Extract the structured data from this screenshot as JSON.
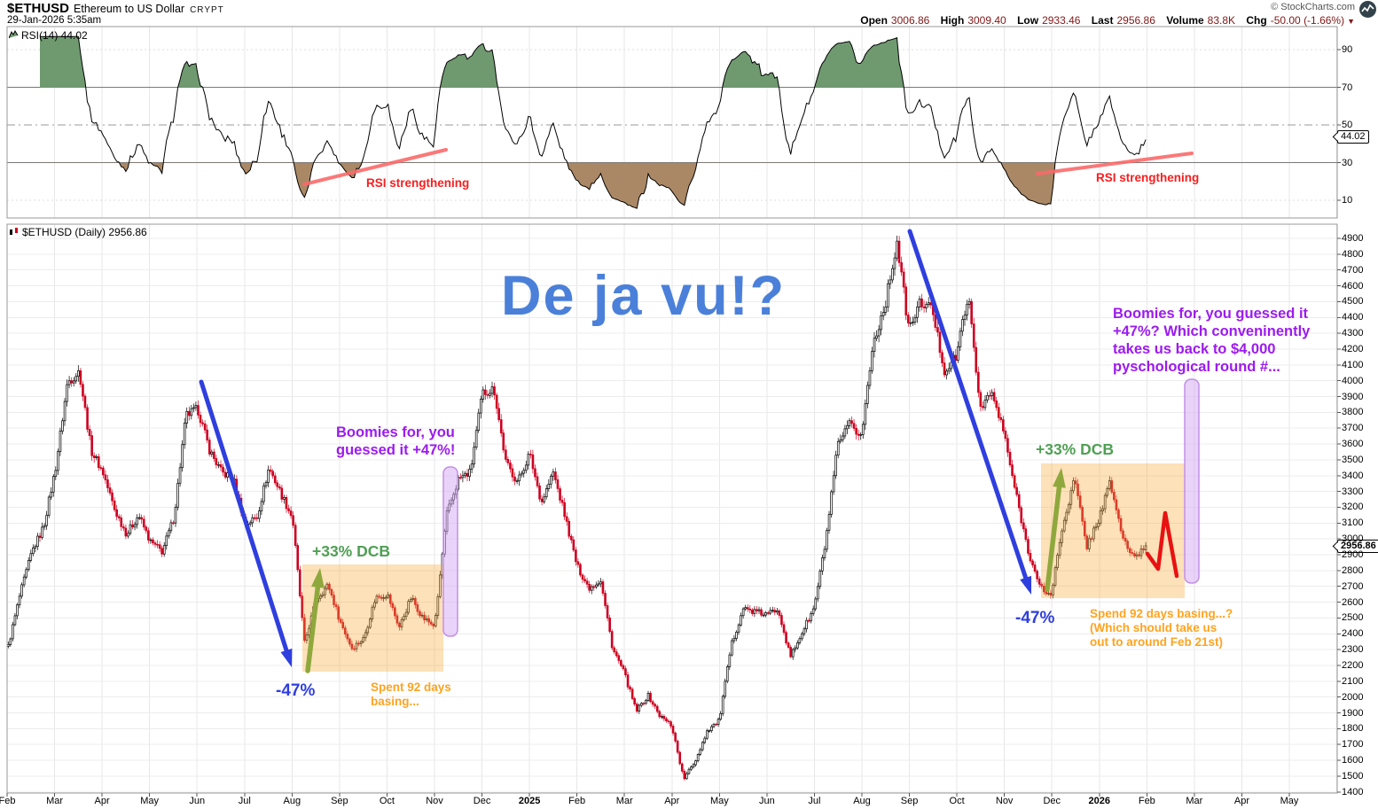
{
  "header": {
    "symbol": "$ETHUSD",
    "name": "Ethereum to US Dollar",
    "exchange": "CRYPT",
    "datetime": "29-Jan-2026 5:35am",
    "credit": "© StockCharts.com",
    "quote": {
      "items": [
        {
          "label": "Open",
          "value": "3006.86"
        },
        {
          "label": "High",
          "value": "3009.40"
        },
        {
          "label": "Low",
          "value": "2933.46"
        },
        {
          "label": "Last",
          "value": "2956.86"
        },
        {
          "label": "Volume",
          "value": "83.8K"
        },
        {
          "label": "Chg",
          "value": "-50.00 (-1.66%)"
        }
      ],
      "chg_direction_icon": "▼"
    }
  },
  "rsi_panel": {
    "label": "RSI(14) 44.02"
  },
  "price_panel": {
    "label": "$ETHUSD (Daily) 2956.86"
  },
  "tags": {
    "rsi": "44.02",
    "price": "2956.86"
  },
  "annotations": {
    "dejavu": "De ja vu!?",
    "purple_left_l1": "Boomies for, you",
    "purple_left_l2": "guessed it +47%!",
    "purple_right_l1": "Boomies for, you guessed it",
    "purple_right_l2": "+47%? Which conveninently",
    "purple_right_l3": "takes us back to $4,000",
    "purple_right_l4": "pyschological round #...",
    "dcb_left": "+33% DCB",
    "dcb_right": "+33% DCB",
    "minus47_left": "-47%",
    "minus47_right": "-47%",
    "orange_left_l1": "Spent 92 days",
    "orange_left_l2": "basing...",
    "orange_right_l1": "Spend 92 days basing...?",
    "orange_right_l2": "(Which should take us",
    "orange_right_l3": "out to around Feb 21st)",
    "rsi_left": "RSI strengthening",
    "rsi_right": "RSI strengthening"
  },
  "colors": {
    "dejavu_blue": "#4A80D9",
    "blue_text": "#2E3EDC",
    "blue_arrow": "#2F3FDE",
    "purple_text": "#9C1BEE",
    "green_text": "#4FA054",
    "green_arrow": "#8FA83D",
    "orange_text": "#FFA320",
    "orange_box": "rgba(247,168,55,0.35)",
    "purple_band_fill": "rgba(214,168,242,0.50)",
    "purple_band_stroke": "#C38FE8",
    "red_text": "#F71E1E",
    "red_zigzag": "#E81212",
    "rsi_trendline": "#FB6A6A",
    "candle_up": "#000000",
    "candle_down": "#CC0020",
    "rsi_overbought_fill": "#6F9A70",
    "rsi_oversold_fill": "#AA8866",
    "quote_value": "#801818"
  },
  "chart_data": [
    {
      "type": "line",
      "title": "RSI(14)",
      "last_value": 44.02,
      "ylim": [
        0,
        100
      ],
      "yticks": [
        90,
        70,
        50,
        30,
        10
      ],
      "hlines": {
        "solid": [
          70,
          30
        ],
        "dashdot": [
          50
        ],
        "dotted": [
          90,
          10
        ]
      },
      "legend_position": "top-left",
      "note": "14-period RSI of ETHUSD daily closes; sage-green fill above 70 (overbought), brown fill below 30 (oversold); two salmon trendlines mark rising RSI lows (Aug-Oct 2024 and Nov 2025-Jan 2026)"
    },
    {
      "type": "candlestick",
      "title": "$ETHUSD (Daily)",
      "last_close": 2956.86,
      "final_close": 2956.86,
      "ylim": [
        1400,
        4900
      ],
      "ytick_step": 100,
      "grid": true,
      "x_labels": [
        "Feb",
        "Mar",
        "Apr",
        "May",
        "Jun",
        "Jul",
        "Aug",
        "Sep",
        "Oct",
        "Nov",
        "Dec",
        "2025",
        "Feb",
        "Mar",
        "Apr",
        "May",
        "Jun",
        "Jul",
        "Aug",
        "Sep",
        "Oct",
        "Nov",
        "Dec",
        "2026",
        "Feb",
        "Mar",
        "Apr",
        "May"
      ],
      "data_months": [
        "Feb 2024",
        "Mar 2024",
        "Apr 2024",
        "May 2024",
        "Jun 2024",
        "Jul 2024",
        "Aug 2024",
        "Sep 2024",
        "Oct 2024",
        "Nov 2024",
        "Dec 2024",
        "Jan 2025",
        "Feb 2025",
        "Mar 2025",
        "Apr 2025",
        "May 2025",
        "Jun 2025",
        "Jul 2025",
        "Aug 2025",
        "Sep 2025",
        "Oct 2025",
        "Nov 2025",
        "Dec 2025",
        "Jan 2026"
      ],
      "anchors_per_month": 4,
      "monthly_close_anchors": [
        [
          2320,
          2650,
          2920,
          3080
        ],
        [
          3450,
          3990,
          4060,
          3560
        ],
        [
          3420,
          3180,
          3030,
          3150
        ],
        [
          2980,
          2920,
          3140,
          3780
        ],
        [
          3820,
          3560,
          3420,
          3380
        ],
        [
          3090,
          3140,
          3450,
          3290
        ],
        [
          3130,
          2340,
          2620,
          2710
        ],
        [
          2480,
          2310,
          2370,
          2630
        ],
        [
          2650,
          2440,
          2630,
          2500
        ],
        [
          2450,
          3150,
          3380,
          3420
        ],
        [
          3920,
          3950,
          3480,
          3360
        ],
        [
          3540,
          3230,
          3420,
          3140
        ],
        [
          2830,
          2690,
          2740,
          2310
        ],
        [
          2150,
          1910,
          2010,
          1880
        ],
        [
          1820,
          1480,
          1600,
          1790
        ],
        [
          1850,
          2320,
          2560,
          2540
        ],
        [
          2520,
          2560,
          2250,
          2410
        ],
        [
          2560,
          2990,
          3590,
          3720
        ],
        [
          3650,
          4240,
          4480,
          4880
        ],
        [
          4320,
          4500,
          4450,
          4060
        ],
        [
          4150,
          4550,
          3840,
          3920
        ],
        [
          3680,
          3300,
          2950,
          2700
        ],
        [
          2640,
          3090,
          3380,
          2950
        ],
        [
          3120,
          3360,
          3020,
          2870
        ]
      ]
    }
  ]
}
